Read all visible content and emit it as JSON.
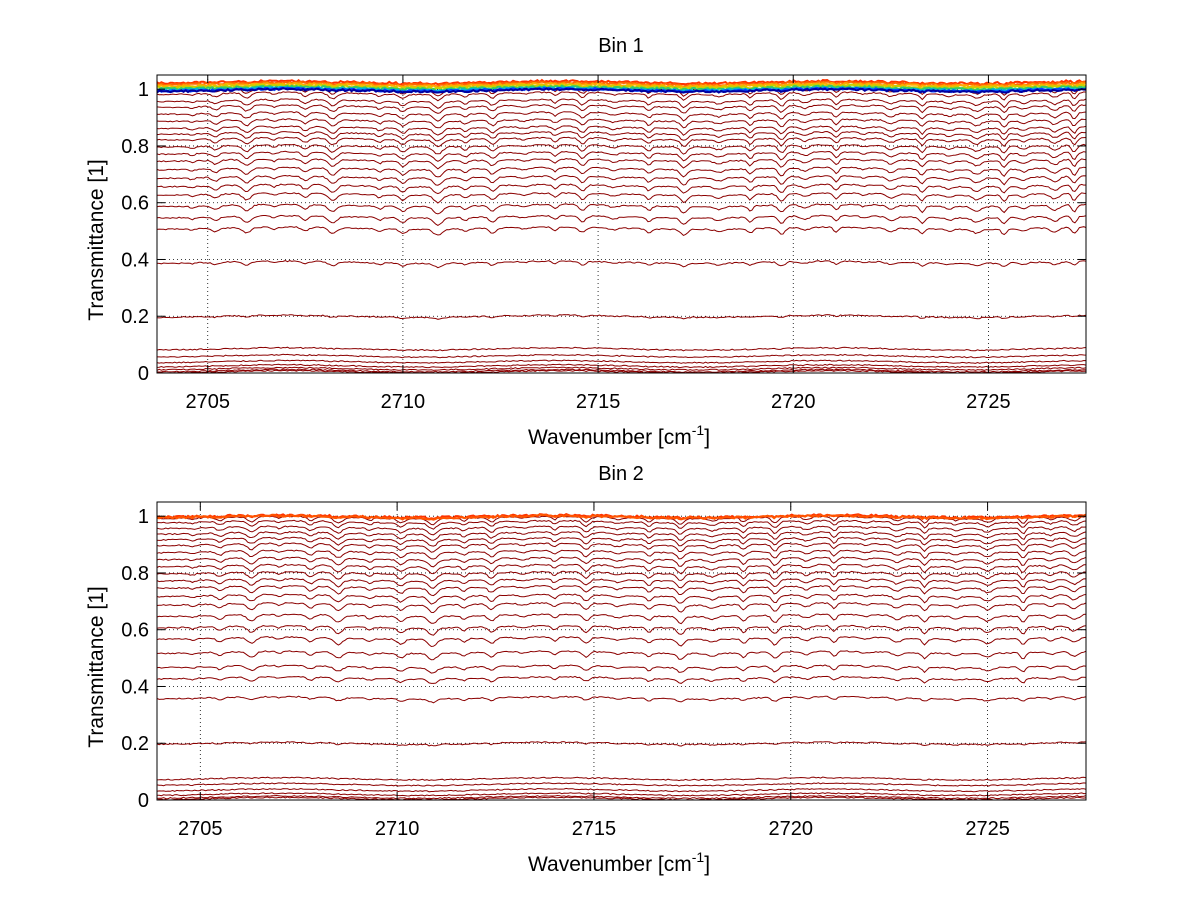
{
  "chart_data": [
    {
      "type": "line",
      "title": "Bin 1",
      "xlabel": "Wavenumber [cm",
      "xlabel_sup": "-1",
      "xlabel_end": "]",
      "ylabel": "Transmittance [1]",
      "xlim": [
        2703.7,
        2727.5
      ],
      "ylim": [
        0,
        1.05
      ],
      "xticks": [
        2705,
        2710,
        2715,
        2720,
        2725
      ],
      "xtick_labels": [
        "2705",
        "2710",
        "2715",
        "2720",
        "2725"
      ],
      "yticks": [
        0,
        0.2,
        0.4,
        0.6,
        0.8,
        1
      ],
      "ytick_labels": [
        "0",
        "0.2",
        "0.4",
        "0.6",
        "0.8",
        "1"
      ],
      "grid": true,
      "line_color": "#8b0000",
      "top_colors": [
        "#ff3300",
        "#ff6600",
        "#ffaa00",
        "#c8d000",
        "#33cc66",
        "#00b0e0",
        "#0044ff",
        "#0000a0"
      ],
      "top_levels": [
        1.025,
        1.02,
        1.015,
        1.01,
        1.005,
        1.0,
        0.998,
        0.996
      ],
      "series_baselines": [
        1.0,
        0.985,
        0.96,
        0.94,
        0.915,
        0.89,
        0.865,
        0.845,
        0.825,
        0.8,
        0.775,
        0.75,
        0.72,
        0.69,
        0.66,
        0.63,
        0.59,
        0.55,
        0.51,
        0.39,
        0.2,
        0.085,
        0.06,
        0.04,
        0.025,
        0.015,
        0.008,
        0.004
      ],
      "absorption_lines": [
        2704.6,
        2705.2,
        2706.0,
        2706.7,
        2707.5,
        2708.2,
        2709.4,
        2710.0,
        2710.9,
        2711.6,
        2712.3,
        2713.1,
        2713.9,
        2714.6,
        2715.4,
        2716.3,
        2717.2,
        2718.1,
        2718.9,
        2719.7,
        2720.3,
        2721.1,
        2721.8,
        2722.5,
        2723.3,
        2724.0,
        2724.7,
        2725.4,
        2725.9,
        2726.7,
        2727.2
      ]
    },
    {
      "type": "line",
      "title": "Bin 2",
      "xlabel": "Wavenumber [cm",
      "xlabel_sup": "-1",
      "xlabel_end": "]",
      "ylabel": "Transmittance [1]",
      "xlim": [
        2703.9,
        2727.5
      ],
      "ylim": [
        0,
        1.05
      ],
      "xticks": [
        2705,
        2710,
        2715,
        2720,
        2725
      ],
      "xtick_labels": [
        "2705",
        "2710",
        "2715",
        "2720",
        "2725"
      ],
      "yticks": [
        0,
        0.2,
        0.4,
        0.6,
        0.8,
        1
      ],
      "ytick_labels": [
        "0",
        "0.2",
        "0.4",
        "0.6",
        "0.8",
        "1"
      ],
      "grid": true,
      "line_color": "#8b0000",
      "top_colors": [
        "#ff3300",
        "#ff5500"
      ],
      "top_levels": [
        1.0,
        0.998
      ],
      "series_baselines": [
        0.995,
        0.98,
        0.96,
        0.94,
        0.92,
        0.9,
        0.875,
        0.85,
        0.825,
        0.8,
        0.775,
        0.75,
        0.72,
        0.69,
        0.65,
        0.61,
        0.57,
        0.52,
        0.47,
        0.43,
        0.36,
        0.2,
        0.075,
        0.055,
        0.035,
        0.02,
        0.01,
        0.005
      ],
      "absorption_lines": [
        2704.8,
        2705.5,
        2706.3,
        2707.0,
        2707.8,
        2708.5,
        2709.3,
        2710.1,
        2710.9,
        2711.7,
        2712.4,
        2713.2,
        2714.0,
        2714.8,
        2715.6,
        2716.4,
        2717.2,
        2718.0,
        2718.8,
        2719.6,
        2720.4,
        2721.1,
        2721.9,
        2722.7,
        2723.4,
        2724.2,
        2725.0,
        2725.9,
        2726.6,
        2727.2
      ]
    }
  ]
}
